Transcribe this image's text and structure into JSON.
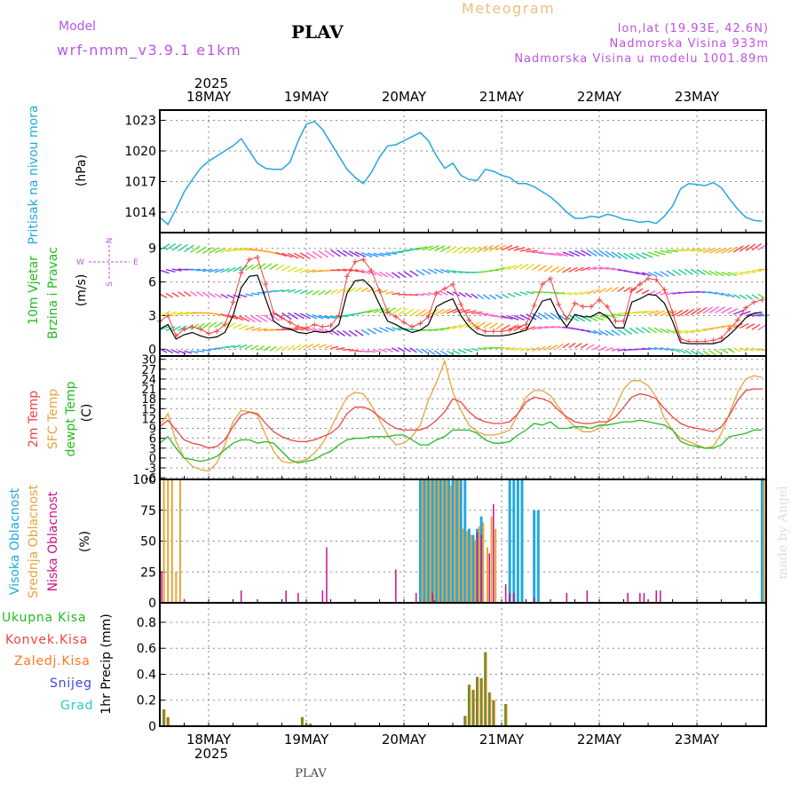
{
  "header": {
    "model_label": "Model",
    "model_name": "wrf-nmm_v3.9.1 e1km",
    "station": "PLAV",
    "title": "Meteogram",
    "lonlat": "lon,lat (19.93E, 42.6N)",
    "elevation": "Nadmorska Visina 933m",
    "model_elevation": "Nadmorska Visina u modelu 1001.89m",
    "footer_station": "PLAV",
    "credit": "made by Angel"
  },
  "colors": {
    "pressure": "#22a8e0",
    "temp2m": "#ee4444",
    "sfc_temp": "#e8a43c",
    "dewpt": "#22bb22",
    "cloud_high": "#22a8e0",
    "cloud_mid": "#e8a43c",
    "cloud_low": "#cc1188",
    "precip_total": "#22bb22",
    "precip_conv": "#ee4444",
    "precip_frz": "#ff7722",
    "precip_snow": "#4444dd",
    "precip_hail": "#22cccc",
    "wind_speed": "#000000",
    "wind_gust": "#ee4444"
  },
  "time_axis": {
    "year_label": "2025",
    "day_labels": [
      "18MAY",
      "19MAY",
      "20MAY",
      "21MAY",
      "22MAY",
      "23MAY"
    ],
    "day_start_hours": [
      0,
      24,
      48,
      72,
      96,
      120
    ],
    "range_hours": [
      -12,
      137
    ]
  },
  "panels": {
    "pressure": {
      "ylabel_main": "Pritisak na nivou mora",
      "ylabel_unit": "(hPa)",
      "yticks": [
        "1014",
        "1017",
        "1020",
        "1023"
      ]
    },
    "wind": {
      "ylabel_line1": "10m Vjetar",
      "ylabel_line2": "Brzina i Pravac",
      "ylabel_unit": "(m/s)",
      "yticks": [
        "0",
        "3",
        "6",
        "9"
      ],
      "compass_n": "N",
      "compass_w": "W",
      "compass_e": "E",
      "compass_s": "S"
    },
    "temperature": {
      "ylabel_2m": "2m Temp",
      "ylabel_sfc": "SFC Temp",
      "ylabel_dew": "dewpt Temp",
      "ylabel_unit": "(C)",
      "yticks": [
        "-6",
        "-3",
        "0",
        "3",
        "6",
        "9",
        "12",
        "15",
        "18",
        "21",
        "24",
        "27",
        "30"
      ]
    },
    "clouds": {
      "ylabel_high": "Visoka Oblacnost",
      "ylabel_mid": "Srednja Oblacnost",
      "ylabel_low": "Niska Oblacnost",
      "ylabel_unit": "(%)",
      "yticks": [
        "0",
        "25",
        "50",
        "75",
        "100"
      ]
    },
    "precip": {
      "legend_total": "Ukupna Kisa",
      "legend_conv": "Konvek.Kisa",
      "legend_frz": "Zaledj.Kisa",
      "legend_snow": "Snijeg",
      "legend_hail": "Grad",
      "ylabel": "1hr Precip (mm)",
      "yticks": [
        "0",
        "0.2",
        "0.4",
        "0.6",
        "0.8"
      ]
    }
  },
  "chart_data": [
    {
      "type": "line",
      "title": "Pritisak na nivou mora",
      "ylabel": "(hPa)",
      "ylim": [
        1012,
        1024
      ],
      "x_hours": [
        -12,
        -10,
        -8,
        -6,
        -4,
        -2,
        0,
        2,
        4,
        6,
        8,
        10,
        12,
        14,
        16,
        18,
        20,
        22,
        24,
        26,
        28,
        30,
        32,
        34,
        36,
        38,
        40,
        42,
        44,
        46,
        48,
        50,
        52,
        54,
        56,
        58,
        60,
        62,
        64,
        66,
        68,
        70,
        72,
        74,
        76,
        78,
        80,
        82,
        84,
        86,
        88,
        90,
        92,
        94,
        96,
        98,
        100,
        102,
        104,
        106,
        108,
        110,
        112,
        114,
        116,
        118,
        120,
        122,
        124,
        126,
        128,
        130,
        132,
        134,
        136
      ],
      "values": [
        1013.5,
        1012.8,
        1014.3,
        1016.0,
        1017.2,
        1018.3,
        1019.0,
        1019.5,
        1020.0,
        1020.5,
        1021.2,
        1020.0,
        1018.8,
        1018.3,
        1018.2,
        1018.2,
        1018.9,
        1021.0,
        1022.6,
        1022.9,
        1022.1,
        1020.8,
        1019.5,
        1018.2,
        1017.4,
        1016.8,
        1017.9,
        1019.4,
        1020.5,
        1020.6,
        1021.0,
        1021.4,
        1021.8,
        1021.0,
        1019.5,
        1018.3,
        1018.8,
        1017.6,
        1017.2,
        1017.1,
        1018.2,
        1018.0,
        1017.6,
        1017.4,
        1016.8,
        1016.8,
        1016.5,
        1016.0,
        1015.5,
        1014.8,
        1014.0,
        1013.4,
        1013.4,
        1013.6,
        1013.5,
        1013.8,
        1013.6,
        1013.3,
        1013.2,
        1013.0,
        1013.1,
        1012.9,
        1013.6,
        1014.6,
        1016.3,
        1016.8,
        1016.7,
        1016.6,
        1016.9,
        1016.4,
        1015.3,
        1014.3,
        1013.5,
        1013.2,
        1013.1
      ]
    },
    {
      "type": "line",
      "title": "10m Vjetar Brzina i Pravac",
      "ylabel": "(m/s)",
      "ylim": [
        -0.6,
        10.4
      ],
      "x_hours": [
        -12,
        -10,
        -8,
        -6,
        -4,
        -2,
        0,
        2,
        4,
        6,
        8,
        10,
        12,
        14,
        16,
        18,
        20,
        22,
        24,
        26,
        28,
        30,
        32,
        34,
        36,
        38,
        40,
        42,
        44,
        46,
        48,
        50,
        52,
        54,
        56,
        58,
        60,
        62,
        64,
        66,
        68,
        70,
        72,
        74,
        76,
        78,
        80,
        82,
        84,
        86,
        88,
        90,
        92,
        94,
        96,
        98,
        100,
        102,
        104,
        106,
        108,
        110,
        112,
        114,
        116,
        118,
        120,
        122,
        124,
        126,
        128,
        130,
        132,
        134,
        136
      ],
      "series": [
        {
          "name": "speed",
          "values": [
            1.8,
            2.2,
            0.9,
            1.3,
            1.5,
            1.2,
            1.0,
            1.1,
            1.5,
            3.0,
            5.5,
            6.5,
            6.6,
            4.5,
            2.5,
            2.0,
            1.8,
            1.5,
            1.4,
            1.6,
            1.5,
            1.6,
            2.2,
            5.0,
            6.1,
            6.2,
            5.5,
            4.0,
            2.5,
            2.2,
            1.8,
            1.5,
            1.7,
            2.2,
            3.8,
            4.2,
            4.5,
            3.0,
            2.0,
            1.4,
            1.2,
            1.2,
            1.2,
            1.3,
            1.5,
            1.7,
            3.0,
            4.3,
            4.5,
            3.0,
            2.0,
            3.1,
            2.9,
            2.9,
            3.3,
            2.9,
            1.9,
            1.9,
            4.2,
            4.5,
            4.9,
            4.8,
            4.1,
            2.5,
            0.6,
            0.5,
            0.5,
            0.5,
            0.5,
            0.7,
            1.3,
            2.0,
            2.8,
            3.2,
            3.3
          ]
        },
        {
          "name": "gust",
          "values": [
            2.5,
            3.0,
            1.2,
            1.8,
            2.0,
            1.8,
            1.4,
            1.6,
            2.2,
            4.2,
            6.8,
            8.0,
            8.2,
            5.8,
            3.2,
            2.8,
            2.4,
            2.0,
            1.9,
            2.2,
            2.0,
            2.1,
            3.0,
            6.5,
            7.8,
            8.0,
            7.0,
            5.2,
            3.3,
            2.9,
            2.4,
            2.0,
            2.3,
            2.9,
            5.0,
            5.4,
            5.8,
            4.0,
            2.6,
            1.9,
            1.6,
            1.6,
            1.6,
            1.7,
            2.0,
            2.2,
            3.9,
            5.8,
            6.3,
            4.0,
            2.7,
            4.1,
            3.8,
            3.8,
            4.4,
            3.8,
            2.5,
            2.5,
            5.3,
            5.8,
            6.3,
            6.2,
            5.3,
            3.3,
            0.9,
            0.7,
            0.7,
            0.7,
            0.8,
            1.0,
            1.8,
            2.6,
            3.7,
            4.2,
            4.4
          ]
        }
      ]
    },
    {
      "type": "line",
      "title": "2m Temp / SFC Temp / dewpt Temp",
      "ylabel": "(C)",
      "ylim": [
        -6.5,
        31
      ],
      "x_hours": [
        -12,
        -10,
        -8,
        -6,
        -4,
        -2,
        0,
        2,
        4,
        6,
        8,
        10,
        12,
        14,
        16,
        18,
        20,
        22,
        24,
        26,
        28,
        30,
        32,
        34,
        36,
        38,
        40,
        42,
        44,
        46,
        48,
        50,
        52,
        54,
        56,
        58,
        60,
        62,
        64,
        66,
        68,
        70,
        72,
        74,
        76,
        78,
        80,
        82,
        84,
        86,
        88,
        90,
        92,
        94,
        96,
        98,
        100,
        102,
        104,
        106,
        108,
        110,
        112,
        114,
        116,
        118,
        120,
        122,
        124,
        126,
        128,
        130,
        132,
        134,
        136
      ],
      "series": [
        {
          "name": "2m Temp",
          "values": [
            9.5,
            11.5,
            8.5,
            5.5,
            4.5,
            4.0,
            3.0,
            3.5,
            5.5,
            9.5,
            13.0,
            14.0,
            13.5,
            10.5,
            8.0,
            6.5,
            5.5,
            5.0,
            5.0,
            5.5,
            6.5,
            7.5,
            9.5,
            13.5,
            15.5,
            15.5,
            14.5,
            12.5,
            10.5,
            9.0,
            8.5,
            8.5,
            8.5,
            9.5,
            11.5,
            14.0,
            18.0,
            17.0,
            14.0,
            12.0,
            11.0,
            10.5,
            10.5,
            11.0,
            13.5,
            17.0,
            18.5,
            18.0,
            17.0,
            14.5,
            12.5,
            11.0,
            10.5,
            10.5,
            11.0,
            11.0,
            12.5,
            15.5,
            18.5,
            19.5,
            19.0,
            18.0,
            15.0,
            12.5,
            10.5,
            9.5,
            9.0,
            8.5,
            8.0,
            9.5,
            13.0,
            17.5,
            20.5,
            21.0,
            21.0
          ]
        },
        {
          "name": "SFC Temp",
          "values": [
            10.0,
            13.5,
            5.0,
            0.0,
            -2.5,
            -3.5,
            -4.0,
            -1.5,
            4.0,
            11.0,
            14.5,
            14.0,
            13.0,
            7.0,
            2.0,
            -1.0,
            -1.5,
            -1.0,
            -0.5,
            1.5,
            4.5,
            9.0,
            14.0,
            18.5,
            20.0,
            19.5,
            16.0,
            11.5,
            7.0,
            4.0,
            4.5,
            6.5,
            10.0,
            17.5,
            23.0,
            29.5,
            20.0,
            14.5,
            10.0,
            8.0,
            7.0,
            7.0,
            7.5,
            8.5,
            13.5,
            18.5,
            20.5,
            20.5,
            19.0,
            15.5,
            12.0,
            9.5,
            8.0,
            8.0,
            9.0,
            11.0,
            15.5,
            21.0,
            23.5,
            23.5,
            22.0,
            18.5,
            12.0,
            8.5,
            6.0,
            5.0,
            4.0,
            3.0,
            3.5,
            7.5,
            13.5,
            20.0,
            24.0,
            25.0,
            24.5
          ]
        },
        {
          "name": "dewpt Temp",
          "values": [
            4.5,
            6.5,
            3.0,
            0.0,
            -0.5,
            -1.0,
            -0.5,
            0.5,
            2.5,
            4.5,
            5.5,
            5.5,
            4.5,
            5.0,
            4.5,
            2.0,
            -0.5,
            -1.5,
            -1.0,
            -0.5,
            1.0,
            2.0,
            4.0,
            5.5,
            6.0,
            6.0,
            6.5,
            6.5,
            6.5,
            7.0,
            7.0,
            5.5,
            4.0,
            4.0,
            5.5,
            6.5,
            8.5,
            8.5,
            8.5,
            7.5,
            5.5,
            4.5,
            4.5,
            5.0,
            7.0,
            8.5,
            10.5,
            10.0,
            11.0,
            9.0,
            9.0,
            9.5,
            9.5,
            9.0,
            10.0,
            10.0,
            10.5,
            11.0,
            11.0,
            11.5,
            11.0,
            10.5,
            10.0,
            8.5,
            5.0,
            4.0,
            3.5,
            3.0,
            3.0,
            4.0,
            6.5,
            7.0,
            7.5,
            8.5,
            8.5
          ]
        }
      ]
    },
    {
      "type": "bar",
      "title": "Visoka / Srednja / Niska Oblacnost",
      "ylabel": "(%)",
      "ylim": [
        0,
        100
      ],
      "series": [
        {
          "name": "Visoka Oblacnost",
          "x_hours": [
            52,
            53,
            54,
            55,
            56,
            57,
            58,
            59,
            60,
            61,
            62,
            63,
            64,
            65,
            66,
            67,
            74,
            75,
            76,
            77,
            80,
            81,
            136
          ],
          "values": [
            100,
            100,
            100,
            100,
            100,
            100,
            100,
            100,
            100,
            100,
            100,
            100,
            60,
            55,
            60,
            70,
            100,
            100,
            100,
            100,
            75,
            75,
            100
          ]
        },
        {
          "name": "Srednja Oblacnost",
          "x_hours": [
            -11,
            -10,
            -9,
            -8,
            -7,
            52.5,
            53.5,
            54.5,
            55.5,
            56.5,
            57.5,
            58.5,
            59.5,
            60.5,
            61.5,
            62.5,
            63.5,
            64.5,
            65.5,
            66.5,
            67.5,
            68.5,
            69.5,
            70.5,
            136.5
          ],
          "values": [
            100,
            100,
            100,
            25,
            100,
            100,
            100,
            100,
            100,
            100,
            100,
            100,
            95,
            100,
            100,
            60,
            58,
            55,
            50,
            62,
            65,
            45,
            70,
            60,
            100
          ]
        },
        {
          "name": "Niska Oblacnost",
          "x_hours": [
            -11.5,
            -6,
            8,
            19,
            22,
            28,
            29,
            46,
            51,
            55,
            55.5,
            66,
            67,
            69,
            70,
            73,
            74,
            75,
            80,
            88,
            93,
            103,
            106,
            107,
            110,
            111
          ],
          "values": [
            25,
            3,
            10,
            10,
            8,
            10,
            45,
            27,
            8,
            8,
            2,
            57,
            55,
            40,
            80,
            15,
            8,
            8,
            4,
            8,
            10,
            8,
            8,
            8,
            10,
            10
          ]
        }
      ]
    },
    {
      "type": "bar",
      "title": "1hr Precip",
      "ylabel": "1hr Precip (mm)",
      "ylim": [
        0,
        0.95
      ],
      "series": [
        {
          "name": "Ukupna Kisa",
          "x_hours": [
            -11,
            -10,
            23,
            24,
            25,
            63,
            64,
            65,
            66,
            67,
            68,
            69,
            70,
            73
          ],
          "values": [
            0.13,
            0.07,
            0.07,
            0.02,
            0.02,
            0.08,
            0.32,
            0.28,
            0.38,
            0.37,
            0.57,
            0.26,
            0.2,
            0.17
          ]
        },
        {
          "name": "Konvek.Kisa",
          "x_hours": [
            -11,
            -10,
            23,
            24,
            25,
            63,
            64,
            65,
            66,
            67,
            68,
            69,
            70,
            73
          ],
          "values": [
            0.13,
            0.07,
            0.07,
            0.02,
            0.02,
            0.08,
            0.32,
            0.28,
            0.38,
            0.37,
            0.57,
            0.26,
            0.2,
            0.17
          ]
        },
        {
          "name": "Zaledj.Kisa",
          "x_hours": [],
          "values": []
        },
        {
          "name": "Snijeg",
          "x_hours": [],
          "values": []
        },
        {
          "name": "Grad",
          "x_hours": [],
          "values": []
        }
      ]
    }
  ]
}
